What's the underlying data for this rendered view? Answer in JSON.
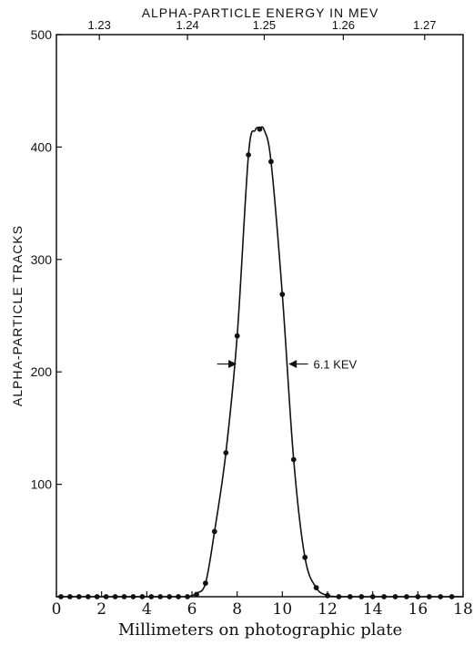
{
  "chart_data": {
    "type": "scatter",
    "title": "",
    "xlabel": "Millimeters on photographic plate",
    "ylabel": "ALPHA-PARTICLE TRACKS",
    "top_axis_label": "ALPHA-PARTICLE ENERGY IN MEV",
    "xlim": [
      0,
      18
    ],
    "ylim": [
      0,
      500
    ],
    "x_ticks": [
      "0",
      "2",
      "4",
      "6",
      "8",
      "10",
      "12",
      "14",
      "16",
      "18"
    ],
    "y_ticks": [
      "100",
      "200",
      "300",
      "400",
      "500"
    ],
    "top_ticks": [
      {
        "label": "1.23",
        "x_mm": 1.9
      },
      {
        "label": "1.24",
        "x_mm": 5.8
      },
      {
        "label": "1.25",
        "x_mm": 9.2
      },
      {
        "label": "1.26",
        "x_mm": 12.7
      },
      {
        "label": "1.27",
        "x_mm": 16.3
      }
    ],
    "grid": false,
    "legend": "none",
    "series": [
      {
        "x": [
          0.2,
          0.6,
          1.0,
          1.4,
          1.8,
          2.2,
          2.6,
          3.0,
          3.4,
          3.8,
          4.2,
          4.6,
          5.0,
          5.4,
          5.8,
          6.2,
          6.6,
          7.0,
          7.5,
          8.0,
          8.5,
          9.0,
          9.5,
          10.0,
          10.5,
          11.0,
          11.5,
          12.0,
          12.5,
          13.0,
          13.5,
          14.0,
          14.5,
          15.0,
          15.5,
          16.0,
          16.5,
          17.0,
          17.5
        ],
        "y": [
          0,
          0,
          0,
          0,
          0,
          0,
          0,
          0,
          0,
          0,
          0,
          0,
          0,
          0,
          0,
          2,
          12,
          58,
          128,
          232,
          393,
          416,
          387,
          269,
          122,
          35,
          8,
          1,
          0,
          0,
          0,
          0,
          0,
          0,
          0,
          0,
          0,
          0,
          0
        ]
      }
    ],
    "curve": {
      "x": [
        5.4,
        5.8,
        6.2,
        6.6,
        7.0,
        7.5,
        8.0,
        8.5,
        8.8,
        9.0,
        9.2,
        9.5,
        10.0,
        10.5,
        11.0,
        11.5,
        12.0,
        12.5
      ],
      "y": [
        0,
        0,
        3,
        12,
        58,
        128,
        232,
        393,
        415,
        417,
        415,
        387,
        269,
        122,
        35,
        8,
        1,
        0
      ]
    },
    "annotation": {
      "text": "6.1 KEV",
      "y": 207
    }
  }
}
